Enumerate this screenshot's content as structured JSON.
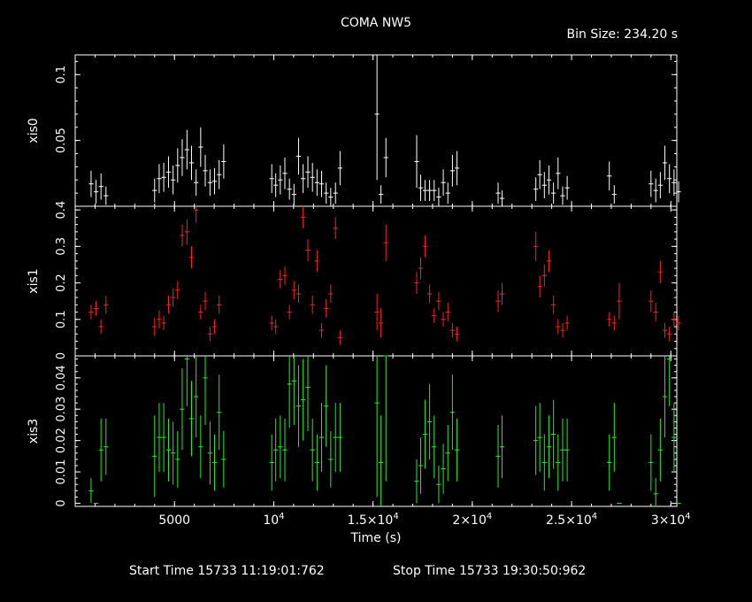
{
  "title": "COMA NW5",
  "bin_size": "Bin Size: 234.20 s",
  "xlabel": "Time (s)",
  "footer": {
    "start": "Start Time 15733 11:19:01:762",
    "stop": "Stop Time 15733 19:30:50:962"
  },
  "x_ticks": [
    {
      "value": 5000,
      "label": "5000"
    },
    {
      "value": 10000,
      "label": "10",
      "exp": "4"
    },
    {
      "value": 15000,
      "label": "1.5×10",
      "exp": "4"
    },
    {
      "value": 20000,
      "label": "2×10",
      "exp": "4"
    },
    {
      "value": 25000,
      "label": "2.5×10",
      "exp": "4"
    },
    {
      "value": 30000,
      "label": "3×10",
      "exp": "4"
    }
  ],
  "chart_data": {
    "type": "scatter",
    "xlim": [
      0,
      30300
    ],
    "panels": [
      {
        "ylabel": "xis0",
        "color": "#ffffff",
        "ylim": [
          0,
          0.115
        ],
        "yticks": [
          {
            "v": 0.1,
            "label": "0.1"
          },
          {
            "v": 0.05,
            "label": "0.05"
          }
        ],
        "points": [
          [
            800,
            0.017,
            0.01
          ],
          [
            1050,
            0.011,
            0.009
          ],
          [
            1300,
            0.015,
            0.01
          ],
          [
            1550,
            0.008,
            0.007
          ],
          [
            3700,
            0.0,
            0.0
          ],
          [
            4000,
            0.012,
            0.009
          ],
          [
            4230,
            0.021,
            0.011
          ],
          [
            4460,
            0.022,
            0.011
          ],
          [
            4700,
            0.026,
            0.012
          ],
          [
            4930,
            0.02,
            0.011
          ],
          [
            5160,
            0.031,
            0.013
          ],
          [
            5390,
            0.037,
            0.014
          ],
          [
            5630,
            0.043,
            0.015
          ],
          [
            5860,
            0.033,
            0.013
          ],
          [
            6090,
            0.018,
            0.01
          ],
          [
            6320,
            0.045,
            0.015
          ],
          [
            6550,
            0.027,
            0.012
          ],
          [
            6790,
            0.018,
            0.01
          ],
          [
            7020,
            0.019,
            0.01
          ],
          [
            7250,
            0.024,
            0.011
          ],
          [
            7480,
            0.034,
            0.013
          ],
          [
            7710,
            0.0,
            0.0
          ],
          [
            9900,
            0.021,
            0.011
          ],
          [
            10100,
            0.016,
            0.009
          ],
          [
            10330,
            0.02,
            0.011
          ],
          [
            10560,
            0.025,
            0.012
          ],
          [
            10790,
            0.013,
            0.008
          ],
          [
            11020,
            0.009,
            0.008
          ],
          [
            11250,
            0.038,
            0.014
          ],
          [
            11480,
            0.021,
            0.011
          ],
          [
            11720,
            0.026,
            0.012
          ],
          [
            11950,
            0.022,
            0.011
          ],
          [
            12180,
            0.018,
            0.01
          ],
          [
            12410,
            0.017,
            0.01
          ],
          [
            12640,
            0.01,
            0.008
          ],
          [
            12870,
            0.007,
            0.007
          ],
          [
            13110,
            0.01,
            0.008
          ],
          [
            13340,
            0.029,
            0.013
          ],
          [
            15200,
            0.07,
            0.05
          ],
          [
            15400,
            0.009,
            0.007
          ],
          [
            15650,
            0.037,
            0.015
          ],
          [
            17200,
            0.034,
            0.02
          ],
          [
            17400,
            0.014,
            0.01
          ],
          [
            17620,
            0.012,
            0.008
          ],
          [
            17850,
            0.012,
            0.008
          ],
          [
            18080,
            0.012,
            0.008
          ],
          [
            18310,
            0.007,
            0.007
          ],
          [
            18540,
            0.018,
            0.01
          ],
          [
            18770,
            0.01,
            0.008
          ],
          [
            19000,
            0.027,
            0.012
          ],
          [
            19230,
            0.029,
            0.013
          ],
          [
            21300,
            0.01,
            0.008
          ],
          [
            21500,
            0.006,
            0.006
          ],
          [
            23200,
            0.013,
            0.009
          ],
          [
            23400,
            0.024,
            0.011
          ],
          [
            23630,
            0.016,
            0.01
          ],
          [
            23860,
            0.02,
            0.011
          ],
          [
            24090,
            0.01,
            0.008
          ],
          [
            24320,
            0.025,
            0.012
          ],
          [
            24550,
            0.008,
            0.007
          ],
          [
            24780,
            0.014,
            0.009
          ],
          [
            26900,
            0.023,
            0.011
          ],
          [
            27150,
            0.009,
            0.007
          ],
          [
            27400,
            0.0,
            0.0
          ],
          [
            29000,
            0.017,
            0.01
          ],
          [
            29240,
            0.012,
            0.009
          ],
          [
            29470,
            0.016,
            0.01
          ],
          [
            29700,
            0.033,
            0.013
          ],
          [
            29930,
            0.021,
            0.011
          ],
          [
            30160,
            0.018,
            0.01
          ],
          [
            30390,
            0.011,
            0.008
          ]
        ]
      },
      {
        "ylabel": "xis1",
        "color": "#ff2020",
        "ylim": [
          0,
          0.41
        ],
        "yticks": [
          {
            "v": 0,
            "label": "0"
          },
          {
            "v": 0.1,
            "label": "0.1"
          },
          {
            "v": 0.2,
            "label": "0.2"
          },
          {
            "v": 0.3,
            "label": "0.3"
          },
          {
            "v": 0.4,
            "label": "0.4"
          }
        ],
        "points": [
          [
            800,
            0.12,
            0.02
          ],
          [
            1050,
            0.13,
            0.02
          ],
          [
            1300,
            0.08,
            0.02
          ],
          [
            1550,
            0.14,
            0.025
          ],
          [
            4000,
            0.08,
            0.025
          ],
          [
            4230,
            0.1,
            0.025
          ],
          [
            4460,
            0.09,
            0.02
          ],
          [
            4700,
            0.14,
            0.025
          ],
          [
            4930,
            0.16,
            0.025
          ],
          [
            5160,
            0.18,
            0.025
          ],
          [
            5390,
            0.33,
            0.03
          ],
          [
            5630,
            0.34,
            0.035
          ],
          [
            5860,
            0.27,
            0.03
          ],
          [
            6090,
            0.4,
            0.035
          ],
          [
            6320,
            0.12,
            0.02
          ],
          [
            6550,
            0.15,
            0.025
          ],
          [
            6790,
            0.06,
            0.02
          ],
          [
            7020,
            0.08,
            0.02
          ],
          [
            7250,
            0.14,
            0.025
          ],
          [
            7480,
            0.0,
            0.0
          ],
          [
            9900,
            0.09,
            0.02
          ],
          [
            10100,
            0.08,
            0.02
          ],
          [
            10330,
            0.21,
            0.025
          ],
          [
            10560,
            0.22,
            0.025
          ],
          [
            10790,
            0.12,
            0.02
          ],
          [
            11020,
            0.18,
            0.025
          ],
          [
            11250,
            0.17,
            0.025
          ],
          [
            11480,
            0.38,
            0.03
          ],
          [
            11720,
            0.29,
            0.03
          ],
          [
            11950,
            0.14,
            0.025
          ],
          [
            12180,
            0.26,
            0.03
          ],
          [
            12410,
            0.07,
            0.02
          ],
          [
            12640,
            0.13,
            0.025
          ],
          [
            12870,
            0.17,
            0.025
          ],
          [
            13110,
            0.35,
            0.03
          ],
          [
            13340,
            0.05,
            0.02
          ],
          [
            15200,
            0.12,
            0.05
          ],
          [
            15400,
            0.09,
            0.04
          ],
          [
            15650,
            0.31,
            0.05
          ],
          [
            17200,
            0.2,
            0.03
          ],
          [
            17400,
            0.24,
            0.03
          ],
          [
            17620,
            0.3,
            0.03
          ],
          [
            17850,
            0.17,
            0.025
          ],
          [
            18080,
            0.11,
            0.02
          ],
          [
            18310,
            0.15,
            0.025
          ],
          [
            18540,
            0.1,
            0.02
          ],
          [
            18770,
            0.12,
            0.025
          ],
          [
            19000,
            0.07,
            0.02
          ],
          [
            19230,
            0.06,
            0.02
          ],
          [
            21300,
            0.15,
            0.03
          ],
          [
            21500,
            0.17,
            0.03
          ],
          [
            23200,
            0.3,
            0.04
          ],
          [
            23400,
            0.19,
            0.03
          ],
          [
            23630,
            0.22,
            0.03
          ],
          [
            23860,
            0.26,
            0.03
          ],
          [
            24090,
            0.14,
            0.025
          ],
          [
            24320,
            0.08,
            0.02
          ],
          [
            24550,
            0.07,
            0.02
          ],
          [
            24780,
            0.09,
            0.02
          ],
          [
            26900,
            0.1,
            0.02
          ],
          [
            27150,
            0.09,
            0.02
          ],
          [
            27400,
            0.15,
            0.05
          ],
          [
            29000,
            0.15,
            0.03
          ],
          [
            29240,
            0.12,
            0.025
          ],
          [
            29470,
            0.23,
            0.03
          ],
          [
            29700,
            0.07,
            0.02
          ],
          [
            29930,
            0.06,
            0.02
          ],
          [
            30160,
            0.1,
            0.02
          ],
          [
            30390,
            0.09,
            0.02
          ]
        ]
      },
      {
        "ylabel": "xis3",
        "color": "#22ee22",
        "ylim": [
          -0.001,
          0.047
        ],
        "yticks": [
          {
            "v": 0,
            "label": "0"
          },
          {
            "v": 0.01,
            "label": "0.01"
          },
          {
            "v": 0.02,
            "label": "0.02"
          },
          {
            "v": 0.03,
            "label": "0.03"
          },
          {
            "v": 0.04,
            "label": "0.04"
          }
        ],
        "points": [
          [
            800,
            0.004,
            0.004
          ],
          [
            1050,
            0.0,
            0.0
          ],
          [
            1300,
            0.017,
            0.01
          ],
          [
            1550,
            0.018,
            0.009
          ],
          [
            4000,
            0.015,
            0.013
          ],
          [
            4230,
            0.021,
            0.011
          ],
          [
            4460,
            0.021,
            0.011
          ],
          [
            4700,
            0.017,
            0.01
          ],
          [
            4930,
            0.016,
            0.01
          ],
          [
            5160,
            0.014,
            0.009
          ],
          [
            5390,
            0.03,
            0.013
          ],
          [
            5630,
            0.046,
            0.015
          ],
          [
            5860,
            0.027,
            0.012
          ],
          [
            6090,
            0.034,
            0.013
          ],
          [
            6320,
            0.018,
            0.01
          ],
          [
            6550,
            0.04,
            0.015
          ],
          [
            6790,
            0.016,
            0.01
          ],
          [
            7020,
            0.013,
            0.009
          ],
          [
            7250,
            0.029,
            0.012
          ],
          [
            7480,
            0.014,
            0.009
          ],
          [
            9900,
            0.013,
            0.009
          ],
          [
            10100,
            0.017,
            0.01
          ],
          [
            10330,
            0.018,
            0.01
          ],
          [
            10560,
            0.017,
            0.01
          ],
          [
            10790,
            0.038,
            0.014
          ],
          [
            11020,
            0.039,
            0.014
          ],
          [
            11250,
            0.031,
            0.013
          ],
          [
            11480,
            0.033,
            0.013
          ],
          [
            11720,
            0.037,
            0.014
          ],
          [
            11950,
            0.017,
            0.01
          ],
          [
            12180,
            0.013,
            0.009
          ],
          [
            12410,
            0.021,
            0.011
          ],
          [
            12640,
            0.031,
            0.013
          ],
          [
            12870,
            0.014,
            0.009
          ],
          [
            13110,
            0.021,
            0.011
          ],
          [
            13340,
            0.021,
            0.011
          ],
          [
            15200,
            0.032,
            0.03
          ],
          [
            15400,
            0.013,
            0.015
          ],
          [
            15650,
            0.047,
            0.04
          ],
          [
            17200,
            0.007,
            0.007
          ],
          [
            17400,
            0.012,
            0.009
          ],
          [
            17620,
            0.022,
            0.011
          ],
          [
            17850,
            0.026,
            0.012
          ],
          [
            18080,
            0.018,
            0.01
          ],
          [
            18310,
            0.006,
            0.006
          ],
          [
            18540,
            0.011,
            0.008
          ],
          [
            18770,
            0.016,
            0.009
          ],
          [
            19000,
            0.029,
            0.012
          ],
          [
            19230,
            0.017,
            0.01
          ],
          [
            21300,
            0.015,
            0.01
          ],
          [
            21500,
            0.018,
            0.01
          ],
          [
            23200,
            0.02,
            0.011
          ],
          [
            23400,
            0.021,
            0.011
          ],
          [
            23630,
            0.013,
            0.009
          ],
          [
            23860,
            0.018,
            0.01
          ],
          [
            24090,
            0.022,
            0.011
          ],
          [
            24320,
            0.013,
            0.009
          ],
          [
            24550,
            0.017,
            0.01
          ],
          [
            24780,
            0.017,
            0.01
          ],
          [
            26900,
            0.013,
            0.009
          ],
          [
            27150,
            0.021,
            0.011
          ],
          [
            27400,
            0.0,
            0.0
          ],
          [
            29000,
            0.013,
            0.009
          ],
          [
            29240,
            0.003,
            0.005
          ],
          [
            29470,
            0.017,
            0.01
          ],
          [
            29700,
            0.034,
            0.013
          ],
          [
            29930,
            0.046,
            0.015
          ],
          [
            30160,
            0.021,
            0.011
          ],
          [
            30390,
            0.0,
            0.0
          ]
        ]
      }
    ]
  }
}
